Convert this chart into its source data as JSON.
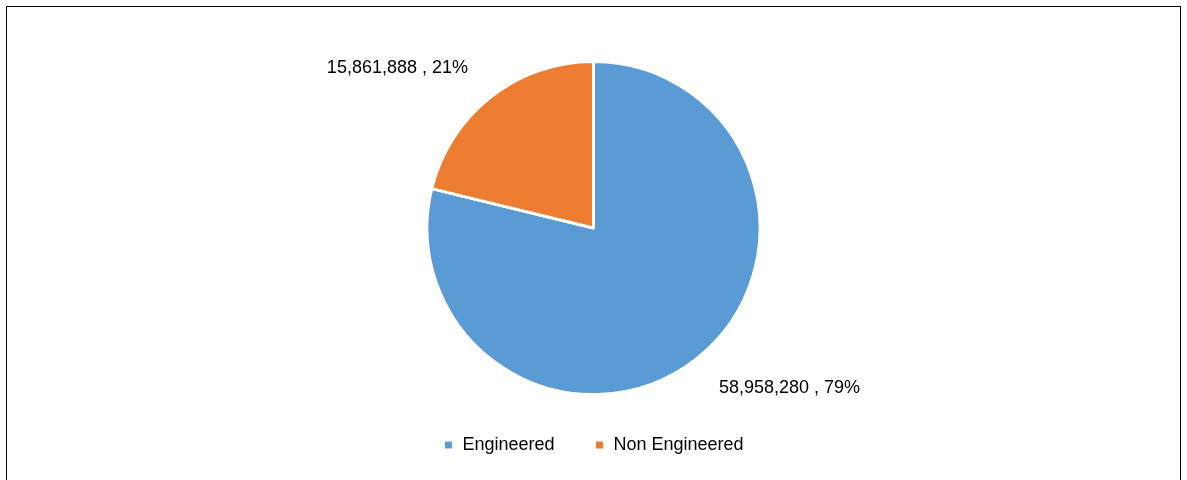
{
  "chart_data": {
    "type": "pie",
    "categories": [
      "Engineered",
      "Non Engineered"
    ],
    "values": [
      58958280,
      15861888
    ],
    "colors": [
      "#5b9bd5",
      "#ed7d31"
    ],
    "value_labels": [
      "58,958,280 , 79%",
      "15,861,888 , 21%"
    ],
    "legend": "bottom"
  }
}
